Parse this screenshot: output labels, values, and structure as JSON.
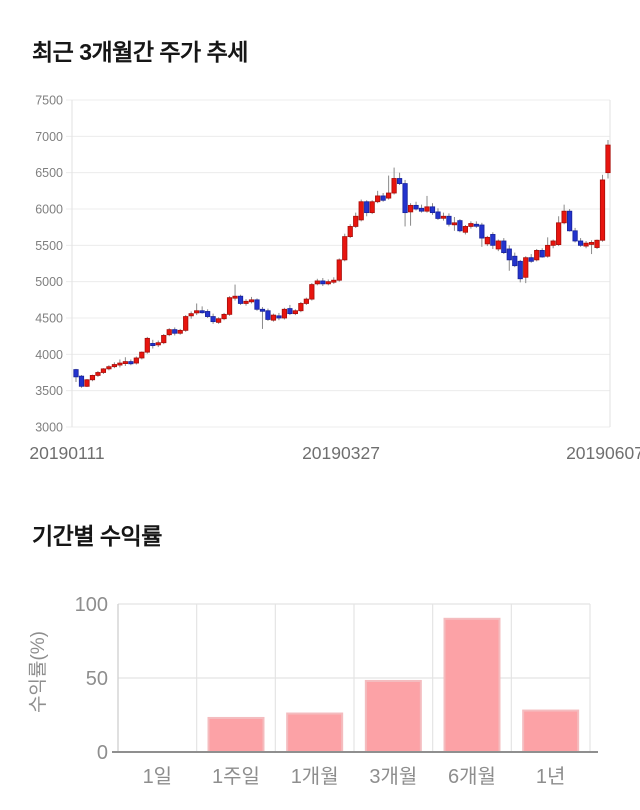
{
  "chart_data": [
    {
      "type": "candlestick",
      "title": "최근 3개월간 주가 추세",
      "ylim": [
        3000,
        7500
      ],
      "y_ticks": [
        7500,
        7000,
        6500,
        6000,
        5500,
        5000,
        4500,
        4000,
        3500,
        3000
      ],
      "x_tick_labels": [
        "20190111",
        "20190327",
        "20190607"
      ],
      "grid": "horizontal",
      "legend": "none",
      "colors": {
        "up_fill": "#e8150f",
        "up_border": "#a80d09",
        "down_fill": "#2333cd",
        "down_border": "#17229c",
        "wick": "#8a8a8a",
        "grid": "#ececec",
        "plot_border": "#e2e2e2",
        "y_tick_text": "#7f7f7f",
        "x_tick_text": "#6f6f6f"
      },
      "ohlc": [
        [
          3790,
          3800,
          3620,
          3690
        ],
        [
          3700,
          3715,
          3540,
          3560
        ],
        [
          3560,
          3660,
          3550,
          3650
        ],
        [
          3650,
          3720,
          3630,
          3710
        ],
        [
          3710,
          3770,
          3690,
          3750
        ],
        [
          3750,
          3810,
          3730,
          3800
        ],
        [
          3800,
          3850,
          3780,
          3830
        ],
        [
          3830,
          3890,
          3810,
          3860
        ],
        [
          3860,
          3930,
          3820,
          3880
        ],
        [
          3890,
          3960,
          3840,
          3900
        ],
        [
          3900,
          3930,
          3850,
          3870
        ],
        [
          3880,
          3970,
          3860,
          3950
        ],
        [
          3950,
          4040,
          3930,
          4030
        ],
        [
          4030,
          4240,
          4010,
          4220
        ],
        [
          4150,
          4200,
          4080,
          4120
        ],
        [
          4130,
          4190,
          4100,
          4160
        ],
        [
          4160,
          4280,
          4140,
          4260
        ],
        [
          4270,
          4360,
          4250,
          4340
        ],
        [
          4340,
          4370,
          4260,
          4290
        ],
        [
          4290,
          4350,
          4270,
          4330
        ],
        [
          4330,
          4540,
          4310,
          4520
        ],
        [
          4530,
          4590,
          4490,
          4560
        ],
        [
          4570,
          4700,
          4540,
          4600
        ],
        [
          4600,
          4660,
          4560,
          4580
        ],
        [
          4590,
          4620,
          4500,
          4520
        ],
        [
          4520,
          4560,
          4420,
          4450
        ],
        [
          4440,
          4510,
          4420,
          4490
        ],
        [
          4490,
          4570,
          4470,
          4550
        ],
        [
          4550,
          4800,
          4530,
          4780
        ],
        [
          4780,
          4960,
          4740,
          4800
        ],
        [
          4800,
          4820,
          4680,
          4700
        ],
        [
          4700,
          4760,
          4670,
          4730
        ],
        [
          4730,
          4790,
          4700,
          4750
        ],
        [
          4750,
          4770,
          4600,
          4620
        ],
        [
          4620,
          4650,
          4350,
          4600
        ],
        [
          4600,
          4630,
          4460,
          4480
        ],
        [
          4470,
          4560,
          4450,
          4540
        ],
        [
          4530,
          4570,
          4470,
          4500
        ],
        [
          4500,
          4640,
          4480,
          4620
        ],
        [
          4630,
          4680,
          4540,
          4560
        ],
        [
          4560,
          4620,
          4540,
          4600
        ],
        [
          4600,
          4720,
          4580,
          4700
        ],
        [
          4700,
          4780,
          4680,
          4760
        ],
        [
          4760,
          4980,
          4740,
          4960
        ],
        [
          4970,
          5040,
          4950,
          5010
        ],
        [
          5010,
          5050,
          4940,
          4970
        ],
        [
          4970,
          5030,
          4950,
          5000
        ],
        [
          5000,
          5060,
          4970,
          5020
        ],
        [
          5020,
          5320,
          5000,
          5300
        ],
        [
          5300,
          5660,
          5280,
          5620
        ],
        [
          5620,
          5790,
          5600,
          5760
        ],
        [
          5760,
          5950,
          5740,
          5900
        ],
        [
          5850,
          6130,
          5830,
          6100
        ],
        [
          6100,
          6120,
          5900,
          5950
        ],
        [
          5950,
          6120,
          5930,
          6100
        ],
        [
          6100,
          6250,
          6080,
          6180
        ],
        [
          6180,
          6220,
          6100,
          6120
        ],
        [
          6150,
          6460,
          6130,
          6220
        ],
        [
          6220,
          6570,
          6200,
          6420
        ],
        [
          6420,
          6500,
          6330,
          6350
        ],
        [
          6350,
          6400,
          5760,
          5950
        ],
        [
          5960,
          6080,
          5770,
          6050
        ],
        [
          6050,
          6100,
          5980,
          6000
        ],
        [
          6010,
          6060,
          5950,
          5970
        ],
        [
          5970,
          6180,
          5950,
          6030
        ],
        [
          6030,
          6080,
          5920,
          5950
        ],
        [
          5960,
          6010,
          5850,
          5870
        ],
        [
          5880,
          5950,
          5840,
          5900
        ],
        [
          5900,
          5940,
          5760,
          5790
        ],
        [
          5800,
          5890,
          5700,
          5810
        ],
        [
          5840,
          5860,
          5680,
          5700
        ],
        [
          5680,
          5780,
          5650,
          5760
        ],
        [
          5760,
          5830,
          5730,
          5800
        ],
        [
          5790,
          5830,
          5740,
          5780
        ],
        [
          5780,
          5810,
          5480,
          5600
        ],
        [
          5520,
          5630,
          5490,
          5610
        ],
        [
          5650,
          5680,
          5450,
          5500
        ],
        [
          5450,
          5580,
          5420,
          5560
        ],
        [
          5560,
          5600,
          5380,
          5400
        ],
        [
          5450,
          5500,
          5150,
          5300
        ],
        [
          5350,
          5400,
          5200,
          5220
        ],
        [
          5280,
          5300,
          4990,
          5040
        ],
        [
          5060,
          5350,
          4980,
          5330
        ],
        [
          5330,
          5380,
          5260,
          5280
        ],
        [
          5300,
          5450,
          5280,
          5430
        ],
        [
          5430,
          5460,
          5330,
          5340
        ],
        [
          5350,
          5610,
          5330,
          5500
        ],
        [
          5500,
          5580,
          5460,
          5560
        ],
        [
          5510,
          5900,
          5490,
          5810
        ],
        [
          5810,
          6060,
          5790,
          5970
        ],
        [
          5970,
          6000,
          5690,
          5700
        ],
        [
          5700,
          5740,
          5540,
          5560
        ],
        [
          5560,
          5600,
          5480,
          5500
        ],
        [
          5490,
          5560,
          5460,
          5530
        ],
        [
          5530,
          5570,
          5380,
          5540
        ],
        [
          5470,
          5580,
          5450,
          5570
        ],
        [
          5570,
          6470,
          5550,
          6400
        ],
        [
          6500,
          6950,
          6420,
          6880
        ]
      ]
    },
    {
      "type": "bar",
      "title": "기간별 수익률",
      "ylabel": "수익률(%)",
      "ylim": [
        0,
        100
      ],
      "y_ticks": [
        0,
        50,
        100
      ],
      "grid": "on",
      "legend": "none",
      "categories": [
        "1일",
        "1주일",
        "1개월",
        "3개월",
        "6개월",
        "1년"
      ],
      "values": [
        0,
        23,
        26,
        48,
        90,
        28
      ],
      "colors": {
        "bar_fill": "#fca2a6",
        "bar_border": "#f4bcbf",
        "grid": "#e4e4e4",
        "axis_line": "#8f8f8f",
        "y_axis_line": "#cccccc",
        "tick_text": "#8e8e8e"
      }
    }
  ]
}
